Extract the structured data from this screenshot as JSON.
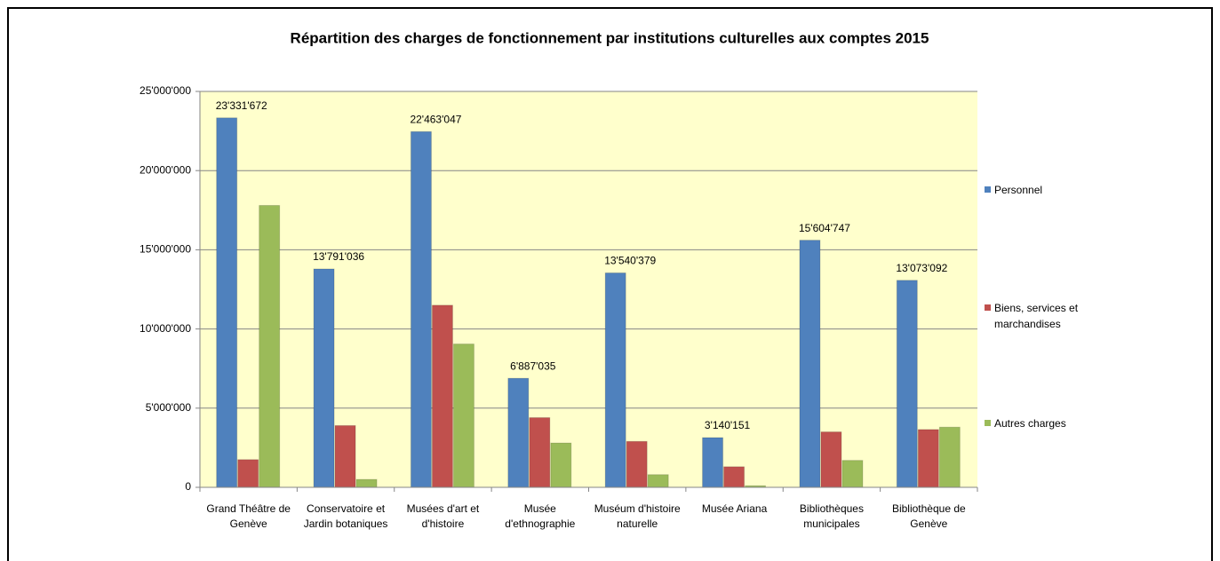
{
  "chart_data": {
    "type": "bar",
    "title": "Répartition des charges de fonctionnement par institutions culturelles aux comptes 2015",
    "categories": [
      "Grand Théâtre de Genève",
      "Conservatoire et Jardin botaniques",
      "Musées d'art et d'histoire",
      "Musée d'ethnographie",
      "Muséum d'histoire naturelle",
      "Musée Ariana",
      "Bibliothèques municipales",
      "Bibliothèque de Genève"
    ],
    "series": [
      {
        "name": "Personnel",
        "color": "#4f81bd",
        "values": [
          23331672,
          13791036,
          22463047,
          6887035,
          13540379,
          3140151,
          15604747,
          13073092
        ],
        "value_labels": [
          "23'331'672",
          "13'791'036",
          "22'463'047",
          "6'887'035",
          "13'540'379",
          "3'140'151",
          "15'604'747",
          "13'073'092"
        ]
      },
      {
        "name": "Biens, services et marchandises",
        "color": "#c0504d",
        "values": [
          1750000,
          3900000,
          11500000,
          4400000,
          2900000,
          1300000,
          3500000,
          3650000
        ]
      },
      {
        "name": "Autres charges",
        "color": "#9bbb59",
        "values": [
          17800000,
          500000,
          9050000,
          2800000,
          800000,
          100000,
          1700000,
          3800000
        ]
      }
    ],
    "ylim": [
      0,
      25000000
    ],
    "yticks": [
      0,
      {
        "value": 5000000,
        "label": "5'000'000"
      },
      {
        "value": 10000000,
        "label": "10'000'000"
      },
      {
        "value": 15000000,
        "label": "15'000'000"
      },
      {
        "value": 20000000,
        "label": "20'000'000"
      },
      {
        "value": 25000000,
        "label": "25'000'000"
      }
    ],
    "grid": true,
    "legend": "right",
    "plot_background": "#ffffcc"
  }
}
